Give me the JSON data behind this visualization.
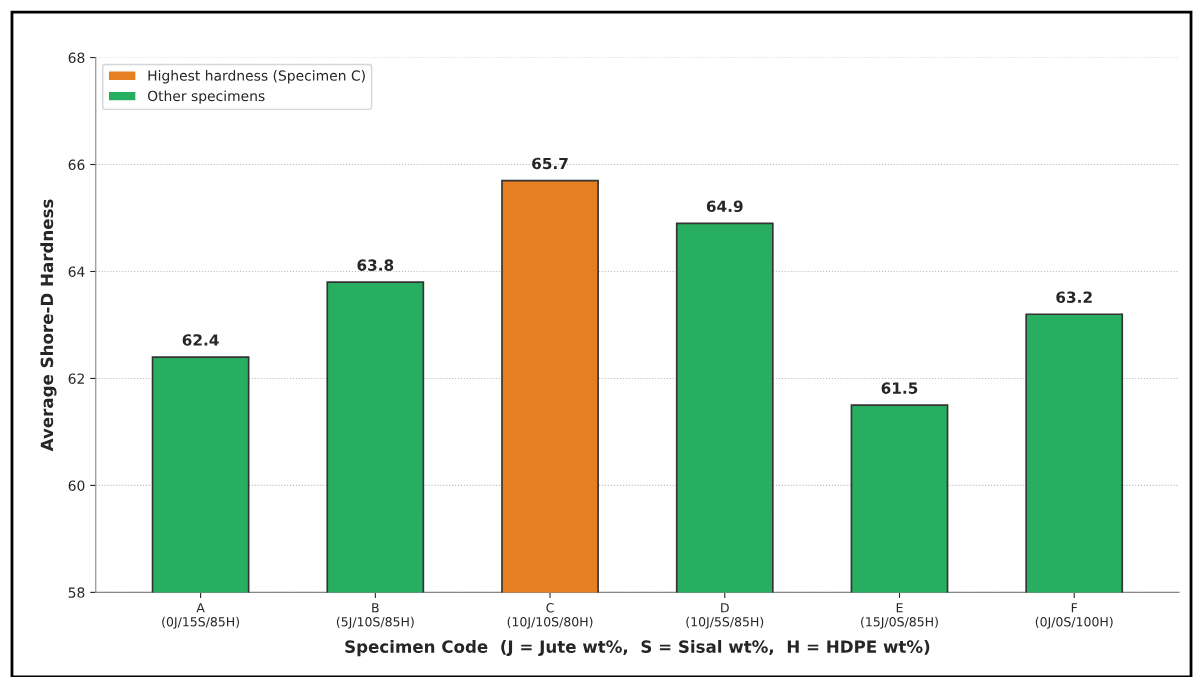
{
  "chart_data": {
    "type": "bar",
    "xlabel": "Specimen Code  (J = Jute wt%,  S = Sisal wt%,  H = HDPE wt%)",
    "ylabel": "Average Shore-D Hardness",
    "categories": [
      "A\n(0J/15S/85H)",
      "B\n(5J/10S/85H)",
      "C\n(10J/10S/80H)",
      "D\n(10J/5S/85H)",
      "E\n(15J/0S/85H)",
      "F\n(0J/0S/100H)"
    ],
    "series": [
      {
        "name": "Highest hardness (Specimen C)",
        "color": "#e67e22",
        "values": [
          null,
          null,
          65.7,
          null,
          null,
          null
        ]
      },
      {
        "name": "Other specimens",
        "color": "#27ae60",
        "values": [
          62.4,
          63.8,
          null,
          64.9,
          61.5,
          63.2
        ]
      }
    ],
    "ylim": [
      58,
      68
    ],
    "yticks": [
      58,
      60,
      62,
      64,
      66,
      68
    ],
    "grid": "y",
    "legend": "top left",
    "data_labels": true
  }
}
